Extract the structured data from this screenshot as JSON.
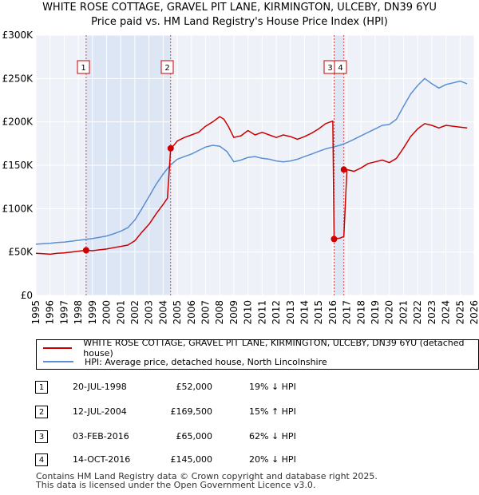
{
  "header": {
    "line1": "WHITE ROSE COTTAGE, GRAVEL PIT LANE, KIRMINGTON, ULCEBY, DN39 6YU",
    "line2": "Price paid vs. HM Land Registry's House Price Index (HPI)"
  },
  "chart_data": {
    "type": "line",
    "title": "WHITE ROSE COTTAGE, GRAVEL PIT LANE, KIRMINGTON, ULCEBY, DN39 6YU — Price paid vs. HM Land Registry's House Price Index (HPI)",
    "xlim": [
      1995,
      2026
    ],
    "ylim": [
      0,
      300000
    ],
    "x_ticks": [
      1995,
      1996,
      1997,
      1998,
      1999,
      2000,
      2001,
      2002,
      2003,
      2004,
      2005,
      2006,
      2007,
      2008,
      2009,
      2010,
      2011,
      2012,
      2013,
      2014,
      2015,
      2016,
      2017,
      2018,
      2019,
      2020,
      2021,
      2022,
      2023,
      2024,
      2025,
      2026
    ],
    "y_ticks": [
      {
        "value": 0,
        "label": "£0"
      },
      {
        "value": 50000,
        "label": "£50K"
      },
      {
        "value": 100000,
        "label": "£100K"
      },
      {
        "value": 150000,
        "label": "£150K"
      },
      {
        "value": 200000,
        "label": "£200K"
      },
      {
        "value": 250000,
        "label": "£250K"
      },
      {
        "value": 300000,
        "label": "£300K"
      }
    ],
    "grid": true,
    "colors": {
      "property": "#cc0000",
      "hpi": "#5b8fd1",
      "shade": "#dde6f5",
      "marker_line": "#cc0000"
    },
    "series": [
      {
        "name": "WHITE ROSE COTTAGE, GRAVEL PIT LANE, KIRMINGTON, ULCEBY, DN39 6YU (detached house)",
        "key": "property",
        "x": [
          1995.0,
          1995.5,
          1996.0,
          1996.5,
          1997.0,
          1997.5,
          1998.0,
          1998.55,
          1999.0,
          1999.5,
          2000.0,
          2000.5,
          2001.0,
          2001.5,
          2002.0,
          2002.5,
          2003.0,
          2003.5,
          2004.0,
          2004.3,
          2004.53,
          2004.6,
          2005.0,
          2005.5,
          2006.0,
          2006.5,
          2007.0,
          2007.5,
          2008.0,
          2008.3,
          2008.6,
          2009.0,
          2009.5,
          2010.0,
          2010.5,
          2011.0,
          2011.5,
          2012.0,
          2012.5,
          2013.0,
          2013.5,
          2014.0,
          2014.5,
          2015.0,
          2015.5,
          2016.0,
          2016.09,
          2016.5,
          2016.78,
          2017.0,
          2017.5,
          2018.0,
          2018.5,
          2019.0,
          2019.5,
          2020.0,
          2020.5,
          2021.0,
          2021.5,
          2022.0,
          2022.5,
          2023.0,
          2023.5,
          2024.0,
          2024.5,
          2025.0,
          2025.5
        ],
        "values": [
          48500,
          48000,
          47500,
          48500,
          49000,
          50000,
          51000,
          52000,
          51500,
          52500,
          53500,
          55000,
          56500,
          58000,
          63000,
          73000,
          82000,
          94000,
          105000,
          112000,
          169500,
          170000,
          178000,
          182000,
          185000,
          188000,
          195000,
          200000,
          206000,
          203000,
          195000,
          182000,
          184000,
          190000,
          185000,
          188000,
          185000,
          182000,
          185000,
          183000,
          180000,
          183000,
          187000,
          192000,
          198000,
          201000,
          65000,
          66000,
          68000,
          145000,
          143000,
          147000,
          152000,
          154000,
          156000,
          153000,
          158000,
          170000,
          183000,
          192000,
          198000,
          196000,
          193000,
          196000,
          195000,
          194000,
          193000
        ]
      },
      {
        "name": "HPI: Average price, detached house, North Lincolnshire",
        "key": "hpi",
        "x": [
          1995.0,
          1995.5,
          1996.0,
          1996.5,
          1997.0,
          1997.5,
          1998.0,
          1998.5,
          1999.0,
          1999.5,
          2000.0,
          2000.5,
          2001.0,
          2001.5,
          2002.0,
          2002.5,
          2003.0,
          2003.5,
          2004.0,
          2004.5,
          2005.0,
          2005.5,
          2006.0,
          2006.5,
          2007.0,
          2007.5,
          2008.0,
          2008.5,
          2009.0,
          2009.5,
          2010.0,
          2010.5,
          2011.0,
          2011.5,
          2012.0,
          2012.5,
          2013.0,
          2013.5,
          2014.0,
          2014.5,
          2015.0,
          2015.5,
          2016.0,
          2016.5,
          2017.0,
          2017.5,
          2018.0,
          2018.5,
          2019.0,
          2019.5,
          2020.0,
          2020.5,
          2021.0,
          2021.5,
          2022.0,
          2022.5,
          2023.0,
          2023.5,
          2024.0,
          2024.5,
          2025.0,
          2025.5
        ],
        "values": [
          59000,
          59500,
          60000,
          61000,
          61500,
          62500,
          63500,
          64500,
          65500,
          67000,
          68500,
          71000,
          74000,
          78000,
          87000,
          100000,
          114000,
          128000,
          140000,
          150000,
          157000,
          160000,
          163000,
          167000,
          171000,
          173000,
          172000,
          166000,
          154000,
          156000,
          159000,
          160000,
          158000,
          157000,
          155000,
          154000,
          155000,
          157000,
          160000,
          163000,
          166000,
          169000,
          171000,
          173000,
          176000,
          180000,
          184000,
          188000,
          192000,
          196000,
          197000,
          203000,
          218000,
          232000,
          242000,
          250000,
          244000,
          239000,
          243000,
          245000,
          247000,
          244000
        ]
      }
    ],
    "shaded_ranges": [
      [
        1998.55,
        2004.53
      ],
      [
        2016.09,
        2016.78
      ]
    ],
    "transactions": [
      {
        "label": "1",
        "x": 1998.55,
        "value": 52000
      },
      {
        "label": "2",
        "x": 2004.53,
        "value": 169500
      },
      {
        "label": "3",
        "x": 2016.09,
        "value": 65000
      },
      {
        "label": "4",
        "x": 2016.78,
        "value": 145000
      }
    ]
  },
  "legend": {
    "property_label": "WHITE ROSE COTTAGE, GRAVEL PIT LANE, KIRMINGTON, ULCEBY, DN39 6YU (detached house)",
    "hpi_label": "HPI: Average price, detached house, North Lincolnshire"
  },
  "sales": [
    {
      "num": "1",
      "date": "20-JUL-1998",
      "price": "£52,000",
      "hpi": "19% ↓ HPI"
    },
    {
      "num": "2",
      "date": "12-JUL-2004",
      "price": "£169,500",
      "hpi": "15% ↑ HPI"
    },
    {
      "num": "3",
      "date": "03-FEB-2016",
      "price": "£65,000",
      "hpi": "62% ↓ HPI"
    },
    {
      "num": "4",
      "date": "14-OCT-2016",
      "price": "£145,000",
      "hpi": "20% ↓ HPI"
    }
  ],
  "footer": {
    "line1": "Contains HM Land Registry data © Crown copyright and database right 2025.",
    "line2": "This data is licensed under the Open Government Licence v3.0."
  }
}
